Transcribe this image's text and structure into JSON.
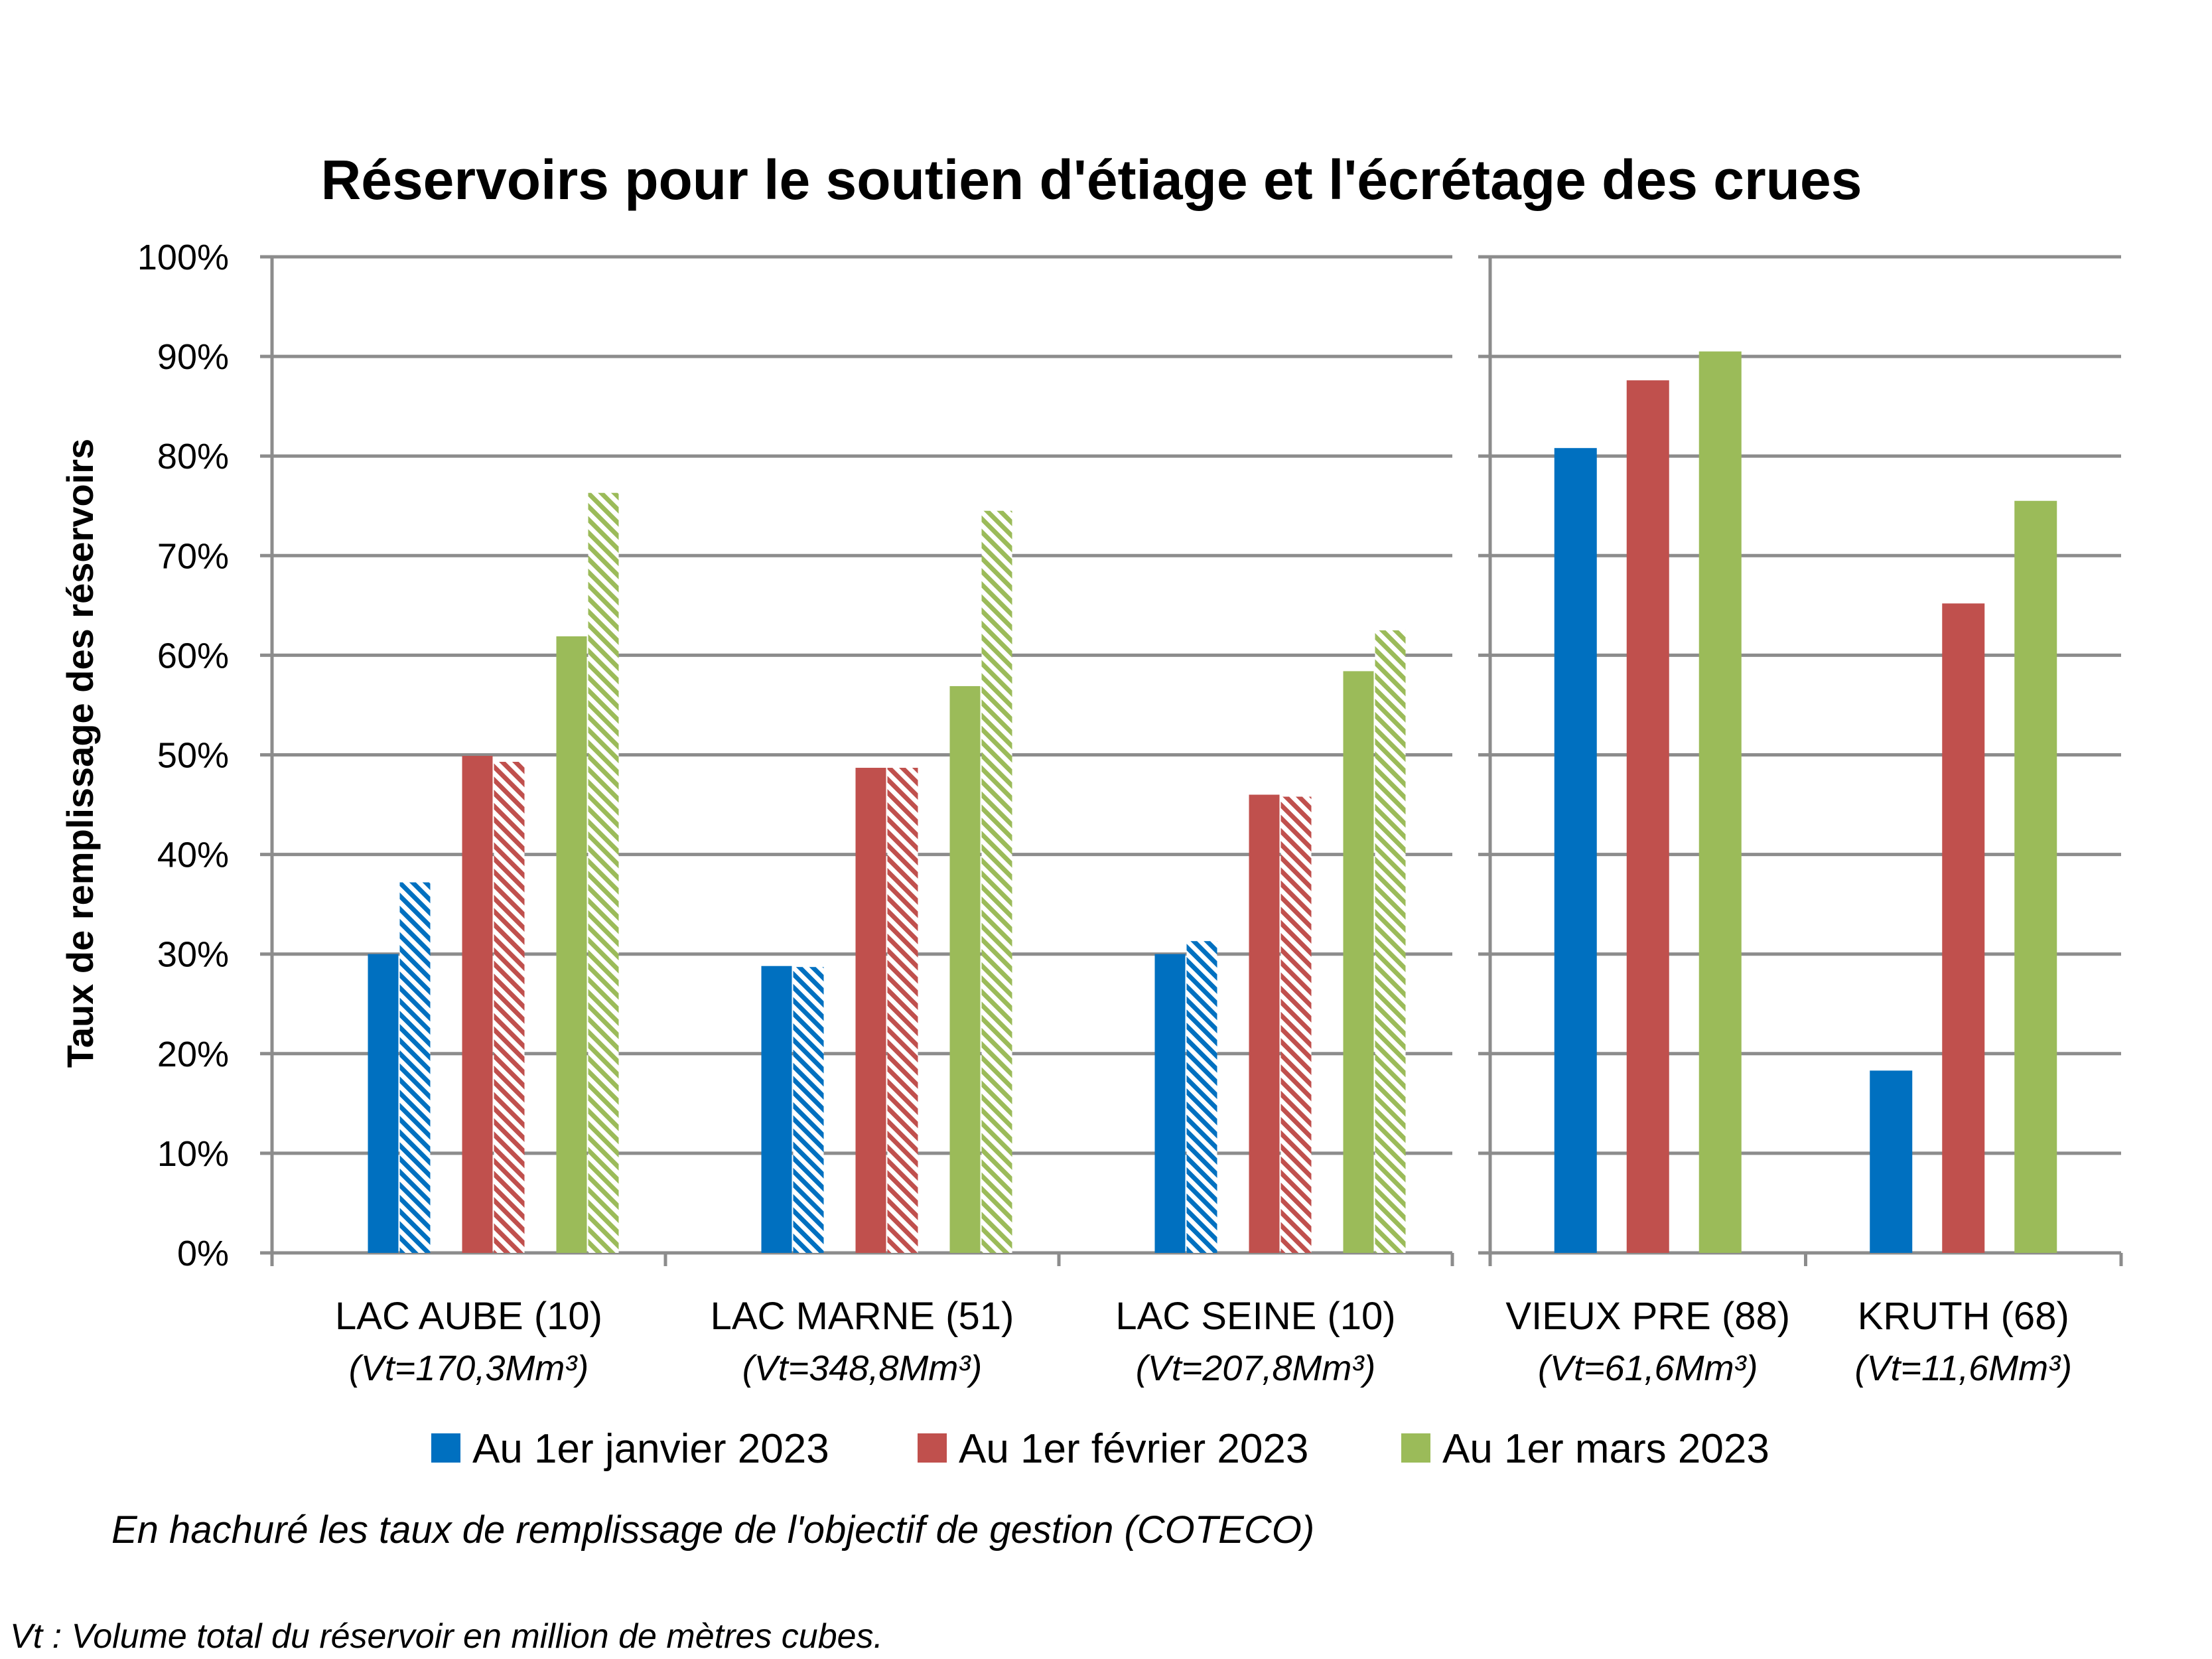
{
  "chart_data": {
    "type": "bar",
    "title": "Réservoirs pour le soutien d'étiage et l'écrétage des crues",
    "ylabel": "Taux de remplissage des réservoirs",
    "ylim": [
      0,
      100
    ],
    "y_ticks": [
      "0%",
      "10%",
      "20%",
      "30%",
      "40%",
      "50%",
      "60%",
      "70%",
      "80%",
      "90%",
      "100%"
    ],
    "grid": true,
    "legend_position": "bottom",
    "categories": [
      {
        "name": "LAC AUBE (10)",
        "volume": "(Vt=170,3Mm³)",
        "panel": "left"
      },
      {
        "name": "LAC MARNE (51)",
        "volume": "(Vt=348,8Mm³)",
        "panel": "left"
      },
      {
        "name": "LAC SEINE (10)",
        "volume": "(Vt=207,8Mm³)",
        "panel": "left"
      },
      {
        "name": "VIEUX PRE (88)",
        "volume": "(Vt=61,6Mm³)",
        "panel": "right"
      },
      {
        "name": "KRUTH (68)",
        "volume": "(Vt=11,6Mm³)",
        "panel": "right"
      }
    ],
    "series": [
      {
        "name": "Au 1er janvier 2023",
        "color": "#0070C0",
        "values": [
          30,
          28.8,
          30,
          80.8,
          18.3
        ],
        "objective": [
          37.2,
          28.7,
          31.3,
          null,
          null
        ]
      },
      {
        "name": "Au 1er février 2023",
        "color": "#C0504D",
        "values": [
          49.9,
          48.7,
          46,
          87.6,
          65.2
        ],
        "objective": [
          49.3,
          48.7,
          45.8,
          null,
          null
        ]
      },
      {
        "name": "Au 1er mars 2023",
        "color": "#9BBB59",
        "values": [
          61.9,
          56.9,
          58.4,
          90.5,
          75.5
        ],
        "objective": [
          76.3,
          74.5,
          62.5,
          null,
          null
        ]
      }
    ]
  },
  "notes": {
    "hatch_note": "En hachuré les taux de remplissage de l'objectif de gestion (COTECO)",
    "vt_note": "Vt : Volume total du réservoir en million de mètres cubes."
  }
}
